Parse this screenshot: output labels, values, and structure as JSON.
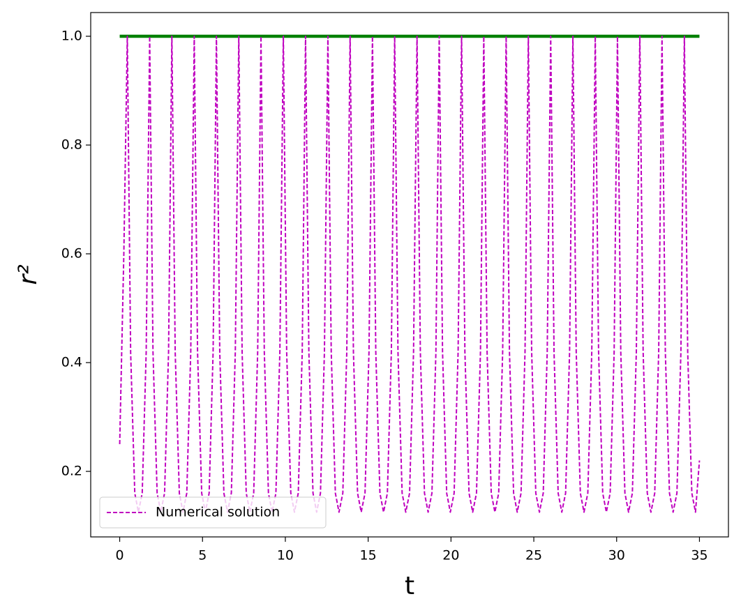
{
  "chart_data": {
    "type": "line",
    "x_label": "t",
    "y_label": "r²",
    "xlim": [
      -1.75,
      36.75
    ],
    "ylim": [
      0.0795,
      1.0436
    ],
    "xticks": [
      0,
      5,
      10,
      15,
      20,
      25,
      30,
      35
    ],
    "yticks": [
      0.2,
      0.4,
      0.6,
      0.8,
      {
        "value": 1,
        "label": "1.0"
      }
    ],
    "grid": false,
    "legend": "lower left",
    "series": [
      {
        "color": "#008000",
        "linestyle": "solid",
        "x": [
          0,
          35
        ],
        "values": [
          1,
          1
        ]
      },
      {
        "name": "Numerical solution",
        "color": "#bf00bf",
        "linestyle": "dashed",
        "x": [
          0,
          0.25,
          0.46,
          0.66,
          0.91,
          1.13,
          1.36,
          1.6,
          1.81,
          2.01,
          2.26,
          2.48,
          2.71,
          2.95,
          3.15,
          3.35,
          3.6,
          3.82,
          4.05,
          4.29,
          4.5,
          4.7,
          4.95,
          5.17,
          5.4,
          5.64,
          5.84,
          6.04,
          6.29,
          6.51,
          6.74,
          6.98,
          7.19,
          7.39,
          7.64,
          7.86,
          8.09,
          8.33,
          8.53,
          8.73,
          8.98,
          9.2,
          9.43,
          9.67,
          9.88,
          10.08,
          10.33,
          10.55,
          10.78,
          11.02,
          11.22,
          11.42,
          11.67,
          11.89,
          12.12,
          12.36,
          12.57,
          12.77,
          13.02,
          13.24,
          13.47,
          13.71,
          13.91,
          14.11,
          14.36,
          14.58,
          14.81,
          15.05,
          15.26,
          15.46,
          15.71,
          15.93,
          16.16,
          16.4,
          16.6,
          16.8,
          17.05,
          17.27,
          17.5,
          17.74,
          17.95,
          18.15,
          18.4,
          18.62,
          18.85,
          19.09,
          19.29,
          19.49,
          19.74,
          19.96,
          20.19,
          20.43,
          20.64,
          20.84,
          21.09,
          21.31,
          21.54,
          21.78,
          21.98,
          22.18,
          22.43,
          22.65,
          22.88,
          23.12,
          23.33,
          23.53,
          23.78,
          24,
          24.23,
          24.47,
          24.67,
          24.87,
          25.12,
          25.34,
          25.57,
          25.81,
          26.02,
          26.22,
          26.47,
          26.69,
          26.92,
          27.16,
          27.36,
          27.56,
          27.81,
          28.03,
          28.26,
          28.5,
          28.71,
          28.91,
          29.16,
          29.38,
          29.61,
          29.85,
          30.05,
          30.25,
          30.5,
          30.72,
          30.95,
          31.19,
          31.4,
          31.6,
          31.85,
          32.07,
          32.3,
          32.54,
          32.74,
          32.94,
          33.19,
          33.41,
          33.64,
          33.88,
          34.09,
          34.29,
          34.54,
          34.76,
          35
        ],
        "values": [
          0.25,
          0.6,
          1,
          0.42,
          0.16,
          0.125,
          0.16,
          0.42,
          1,
          0.42,
          0.16,
          0.125,
          0.16,
          0.42,
          1,
          0.42,
          0.16,
          0.125,
          0.16,
          0.42,
          1,
          0.42,
          0.16,
          0.125,
          0.16,
          0.42,
          1,
          0.42,
          0.16,
          0.125,
          0.16,
          0.42,
          1,
          0.42,
          0.16,
          0.125,
          0.16,
          0.42,
          1,
          0.42,
          0.16,
          0.125,
          0.16,
          0.42,
          1,
          0.42,
          0.16,
          0.125,
          0.16,
          0.42,
          1,
          0.42,
          0.16,
          0.125,
          0.16,
          0.42,
          1,
          0.42,
          0.16,
          0.125,
          0.16,
          0.42,
          1,
          0.42,
          0.16,
          0.125,
          0.16,
          0.42,
          1,
          0.42,
          0.16,
          0.125,
          0.16,
          0.42,
          1,
          0.42,
          0.16,
          0.125,
          0.16,
          0.42,
          1,
          0.42,
          0.16,
          0.125,
          0.16,
          0.42,
          1,
          0.42,
          0.16,
          0.125,
          0.16,
          0.42,
          1,
          0.42,
          0.16,
          0.125,
          0.16,
          0.42,
          1,
          0.42,
          0.16,
          0.125,
          0.16,
          0.42,
          1,
          0.42,
          0.16,
          0.125,
          0.16,
          0.42,
          1,
          0.42,
          0.16,
          0.125,
          0.16,
          0.42,
          1,
          0.42,
          0.16,
          0.125,
          0.16,
          0.42,
          1,
          0.42,
          0.16,
          0.125,
          0.16,
          0.42,
          1,
          0.42,
          0.16,
          0.125,
          0.16,
          0.42,
          1,
          0.42,
          0.16,
          0.125,
          0.16,
          0.42,
          1,
          0.42,
          0.16,
          0.125,
          0.16,
          0.42,
          1,
          0.42,
          0.16,
          0.125,
          0.16,
          0.42,
          1,
          0.42,
          0.16,
          0.125,
          0.22
        ]
      }
    ]
  }
}
